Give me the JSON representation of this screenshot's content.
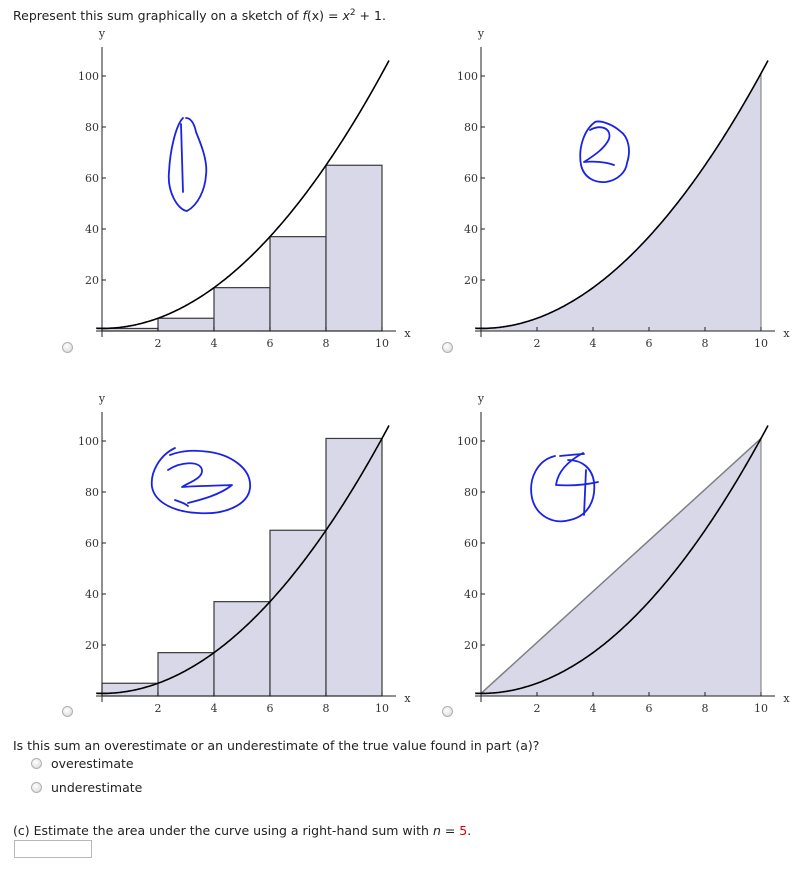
{
  "prompt": {
    "text_before": "Represent this sum graphically on a sketch of ",
    "fx": "f",
    "fx_arg": "(x)",
    "equals": " = ",
    "x_var": "x",
    "exponent": "2",
    "tail": " + 1."
  },
  "question": {
    "text": "Is this sum an overestimate or an underestimate of the true value found in part (a)?",
    "options": [
      {
        "label": "overestimate"
      },
      {
        "label": "underestimate"
      }
    ]
  },
  "part_c": {
    "text_before": "(c) Estimate the area under the curve using a right-hand sum with ",
    "n_var": "n",
    "equals": " = ",
    "n_value": "5",
    "tail": ".",
    "input_value": "",
    "n_value_color": "#e00000"
  },
  "colors": {
    "fill": "#d8d8e8",
    "rect_stroke": "#3a3a3a",
    "curve": "#000000",
    "line": "#808080",
    "annotation": "#1a22e6"
  },
  "chart_data": [
    {
      "id": "option-1",
      "type": "line",
      "title": "",
      "function": "f(x) = x^2 + 1",
      "xlabel": "x",
      "ylabel": "y",
      "xlim": [
        0,
        10.5
      ],
      "ylim": [
        0,
        110
      ],
      "xticks": [
        2,
        4,
        6,
        8,
        10
      ],
      "yticks": [
        20,
        40,
        60,
        80,
        100
      ],
      "overlay": "left-hand rectangles",
      "rectangles": [
        {
          "x0": 0,
          "x1": 2,
          "height": 1
        },
        {
          "x0": 2,
          "x1": 4,
          "height": 5
        },
        {
          "x0": 4,
          "x1": 6,
          "height": 17
        },
        {
          "x0": 6,
          "x1": 8,
          "height": 37
        },
        {
          "x0": 8,
          "x1": 10,
          "height": 65
        }
      ],
      "annotation": "1"
    },
    {
      "id": "option-2",
      "type": "area",
      "title": "",
      "function": "f(x) = x^2 + 1",
      "xlabel": "x",
      "ylabel": "y",
      "xlim": [
        0,
        10.5
      ],
      "ylim": [
        0,
        110
      ],
      "xticks": [
        2,
        4,
        6,
        8,
        10
      ],
      "yticks": [
        20,
        40,
        60,
        80,
        100
      ],
      "overlay": "shaded area under curve from 0 to 10",
      "annotation": "2"
    },
    {
      "id": "option-3",
      "type": "line",
      "title": "",
      "function": "f(x) = x^2 + 1",
      "xlabel": "x",
      "ylabel": "y",
      "xlim": [
        0,
        10.5
      ],
      "ylim": [
        0,
        110
      ],
      "xticks": [
        2,
        4,
        6,
        8,
        10
      ],
      "yticks": [
        20,
        40,
        60,
        80,
        100
      ],
      "overlay": "right-hand rectangles",
      "rectangles": [
        {
          "x0": 0,
          "x1": 2,
          "height": 5
        },
        {
          "x0": 2,
          "x1": 4,
          "height": 17
        },
        {
          "x0": 4,
          "x1": 6,
          "height": 37
        },
        {
          "x0": 6,
          "x1": 8,
          "height": 65
        },
        {
          "x0": 8,
          "x1": 10,
          "height": 101
        }
      ],
      "annotation": "3"
    },
    {
      "id": "option-4",
      "type": "area",
      "title": "",
      "function": "f(x) = x^2 + 1",
      "xlabel": "x",
      "ylabel": "y",
      "xlim": [
        0,
        10.5
      ],
      "ylim": [
        0,
        110
      ],
      "xticks": [
        2,
        4,
        6,
        8,
        10
      ],
      "yticks": [
        20,
        40,
        60,
        80,
        100
      ],
      "overlay": "trapezoid from (0,1) to (10,101)",
      "line": {
        "from": [
          0,
          1
        ],
        "to": [
          10,
          101
        ]
      },
      "annotation": "4"
    }
  ]
}
